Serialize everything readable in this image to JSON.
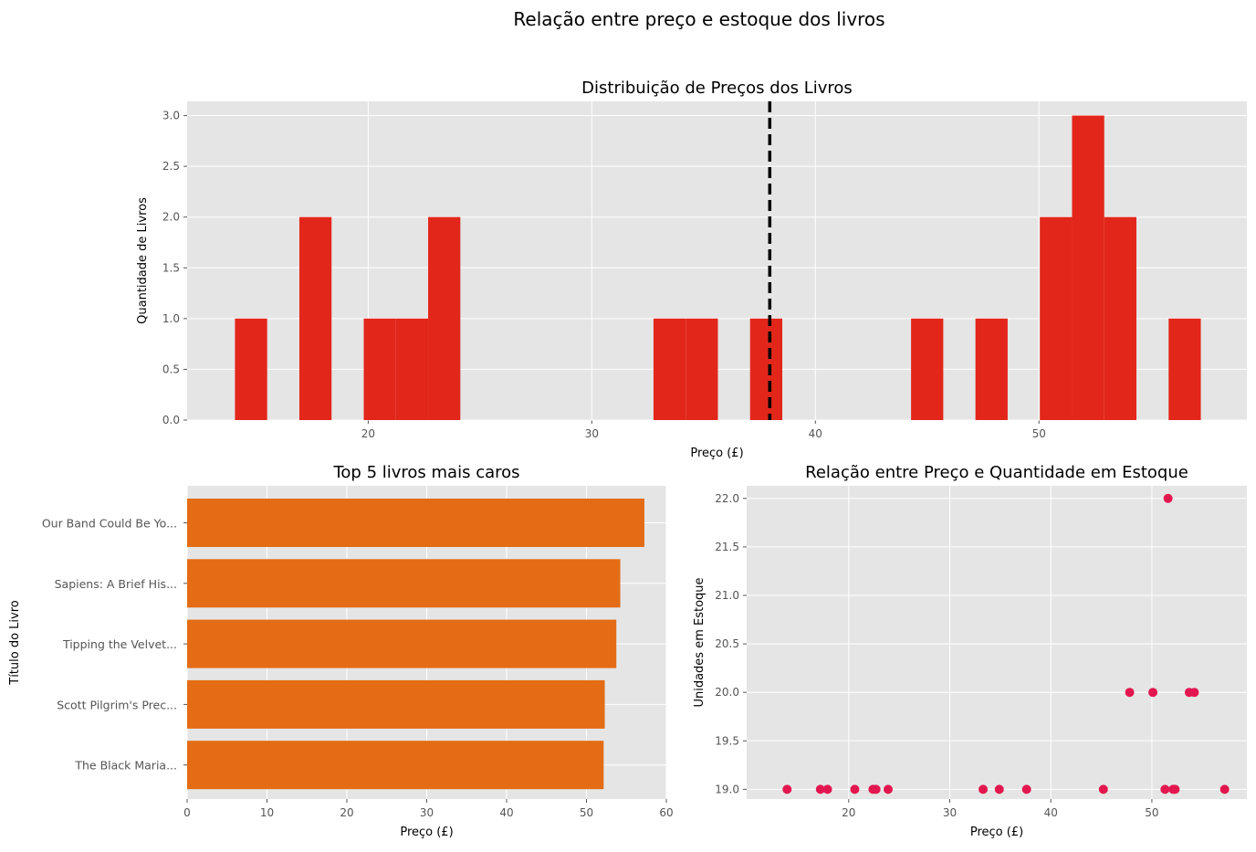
{
  "suptitle": "Relação entre preço e estoque dos livros",
  "chart_data": [
    {
      "type": "bar",
      "subtype": "histogram",
      "title": "Distribuição de Preços dos Livros",
      "xlabel": "Preço (£)",
      "ylabel": "Quantidade de Livros",
      "bin_start": 14.04,
      "bin_width": 1.44,
      "counts": [
        1,
        0,
        2,
        0,
        1,
        1,
        2,
        0,
        0,
        0,
        0,
        0,
        0,
        1,
        1,
        0,
        1,
        0,
        0,
        0,
        0,
        1,
        0,
        1,
        0,
        2,
        3,
        2,
        0,
        1
      ],
      "mean_line": 37.96,
      "xlim": [
        11.9,
        59.3
      ],
      "ylim": [
        0,
        3.14
      ],
      "xticks": [
        20,
        30,
        40,
        50
      ],
      "yticks": [
        "0.0",
        "0.5",
        "1.0",
        "1.5",
        "2.0",
        "2.5",
        "3.0"
      ],
      "color": "#e3261a",
      "grid": true
    },
    {
      "type": "bar",
      "orientation": "horizontal",
      "title": "Top 5 livros mais caros",
      "xlabel": "Preço (£)",
      "ylabel": "Título do Livro",
      "categories": [
        "Our Band Could Be Yo...",
        "Sapiens: A Brief His...",
        "Tipping the Velvet...",
        "Scott Pilgrim's Prec...",
        "The Black Maria..."
      ],
      "values": [
        57.25,
        54.23,
        53.74,
        52.29,
        52.15
      ],
      "xlim": [
        0,
        60
      ],
      "xticks": [
        0,
        10,
        20,
        30,
        40,
        50,
        60
      ],
      "color": "#e36c14",
      "grid": true
    },
    {
      "type": "scatter",
      "title": "Relação entre Preço e Quantidade em Estoque",
      "xlabel": "Preço (£)",
      "ylabel": "Unidades em Estoque",
      "points": [
        [
          13.9,
          19
        ],
        [
          17.2,
          19
        ],
        [
          17.9,
          19
        ],
        [
          20.6,
          19
        ],
        [
          22.4,
          19
        ],
        [
          22.7,
          19
        ],
        [
          23.9,
          19
        ],
        [
          33.3,
          19
        ],
        [
          34.9,
          19
        ],
        [
          37.6,
          19
        ],
        [
          45.2,
          19
        ],
        [
          51.3,
          19
        ],
        [
          52.1,
          19
        ],
        [
          52.3,
          19
        ],
        [
          57.2,
          19
        ],
        [
          51.6,
          22
        ],
        [
          47.8,
          20
        ],
        [
          50.1,
          20
        ],
        [
          53.7,
          20
        ],
        [
          54.2,
          20
        ]
      ],
      "xlim": [
        9.9,
        59.4
      ],
      "ylim": [
        18.9,
        22.13
      ],
      "xticks": [
        20,
        30,
        40,
        50
      ],
      "yticks": [
        "19.0",
        "19.5",
        "20.0",
        "20.5",
        "21.0",
        "21.5",
        "22.0"
      ],
      "color": "#e3174f",
      "grid": true
    }
  ]
}
